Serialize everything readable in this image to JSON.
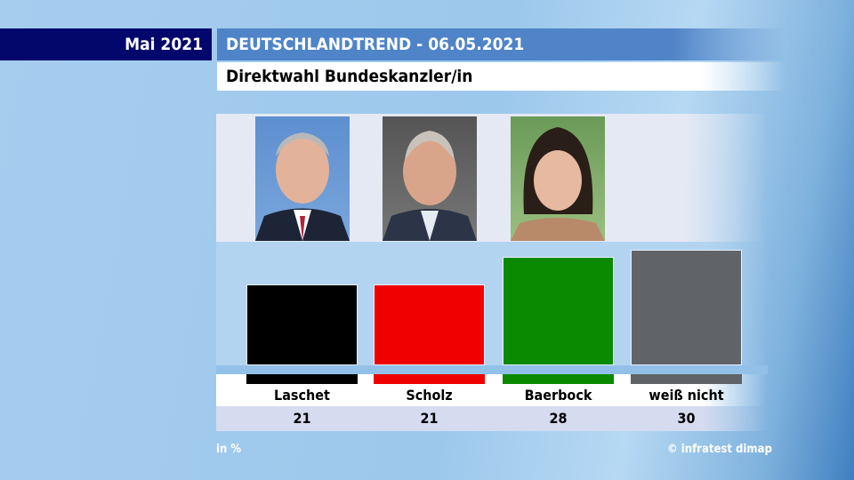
{
  "header": {
    "month": "Mai 2021",
    "title": "DEUTSCHLANDTREND - 06.05.2021",
    "subtitle": "Direktwahl Bundeskanzler/in"
  },
  "footer": {
    "unit": "in %",
    "source": "© infratest dimap"
  },
  "chart_data": {
    "type": "bar",
    "title": "Direktwahl Bundeskanzler/in",
    "categories": [
      "Laschet",
      "Scholz",
      "Baerbock",
      "weiß nicht"
    ],
    "values": [
      21,
      21,
      28,
      30
    ],
    "colors": [
      "#000000",
      "#f00000",
      "#0a8a00",
      "#606368"
    ],
    "unit": "in %",
    "ylim": [
      0,
      32
    ],
    "grid": false
  }
}
